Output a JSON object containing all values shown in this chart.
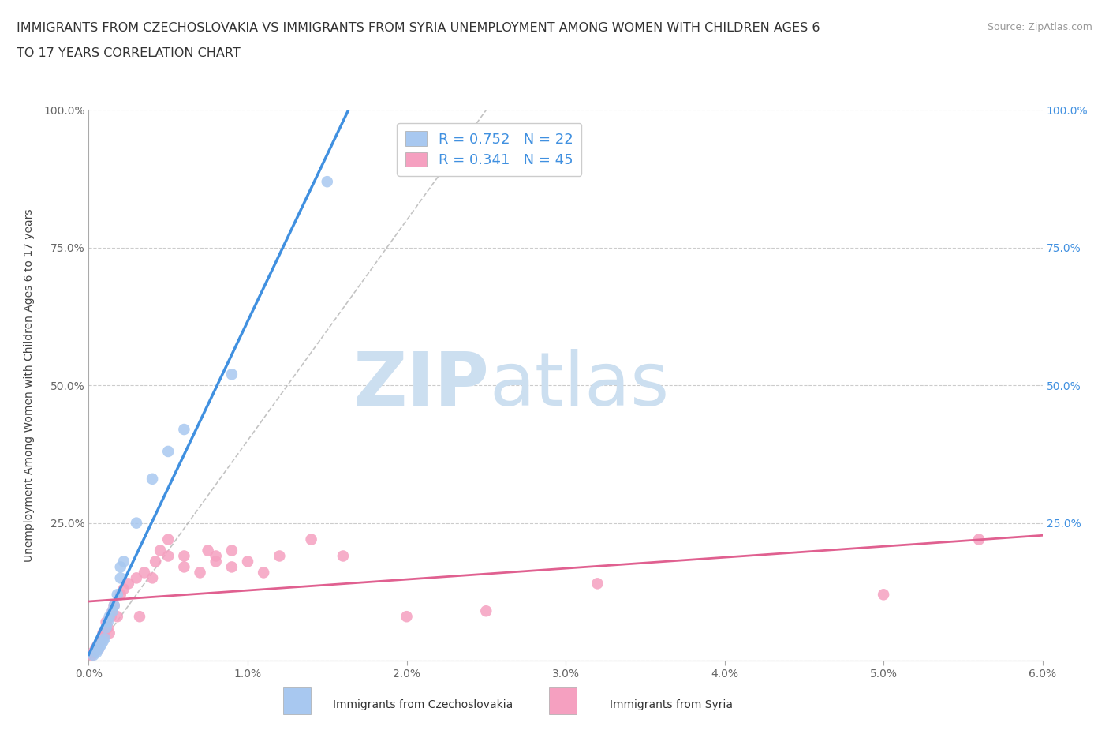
{
  "title_line1": "IMMIGRANTS FROM CZECHOSLOVAKIA VS IMMIGRANTS FROM SYRIA UNEMPLOYMENT AMONG WOMEN WITH CHILDREN AGES 6",
  "title_line2": "TO 17 YEARS CORRELATION CHART",
  "source": "Source: ZipAtlas.com",
  "legend_label_czech": "Immigrants from Czechoslovakia",
  "legend_label_syria": "Immigrants from Syria",
  "ylabel": "Unemployment Among Women with Children Ages 6 to 17 years",
  "xlim": [
    0.0,
    0.06
  ],
  "ylim": [
    0.0,
    1.0
  ],
  "xticks": [
    0.0,
    0.01,
    0.02,
    0.03,
    0.04,
    0.05,
    0.06
  ],
  "xtick_labels": [
    "0.0%",
    "1.0%",
    "2.0%",
    "3.0%",
    "4.0%",
    "5.0%",
    "6.0%"
  ],
  "yticks": [
    0.0,
    0.25,
    0.5,
    0.75,
    1.0
  ],
  "ytick_labels_left": [
    "",
    "25.0%",
    "50.0%",
    "75.0%",
    "100.0%"
  ],
  "ytick_labels_right": [
    "",
    "25.0%",
    "50.0%",
    "75.0%",
    "100.0%"
  ],
  "R_czech": 0.752,
  "N_czech": 22,
  "R_syria": 0.341,
  "N_syria": 45,
  "color_czech": "#a8c8f0",
  "color_syria": "#f5a0c0",
  "color_trend_czech": "#4090e0",
  "color_trend_syria": "#e06090",
  "color_right_axis": "#4090e0",
  "watermark_ZIP": "ZIP",
  "watermark_atlas": "atlas",
  "watermark_color": "#ccdff0",
  "czech_points_x": [
    0.0003,
    0.0005,
    0.0006,
    0.0007,
    0.0008,
    0.0009,
    0.001,
    0.0011,
    0.0012,
    0.0013,
    0.0015,
    0.0016,
    0.0018,
    0.002,
    0.002,
    0.0022,
    0.003,
    0.004,
    0.005,
    0.006,
    0.009,
    0.015
  ],
  "czech_points_y": [
    0.01,
    0.015,
    0.02,
    0.025,
    0.03,
    0.035,
    0.04,
    0.06,
    0.07,
    0.08,
    0.09,
    0.1,
    0.12,
    0.15,
    0.17,
    0.18,
    0.25,
    0.33,
    0.38,
    0.42,
    0.52,
    0.87
  ],
  "syria_points_x": [
    0.0002,
    0.0003,
    0.0004,
    0.0005,
    0.0006,
    0.0007,
    0.0008,
    0.0009,
    0.001,
    0.0011,
    0.0012,
    0.0013,
    0.0014,
    0.0015,
    0.0016,
    0.0018,
    0.002,
    0.0022,
    0.0025,
    0.003,
    0.0032,
    0.0035,
    0.004,
    0.0042,
    0.0045,
    0.005,
    0.005,
    0.006,
    0.006,
    0.007,
    0.0075,
    0.008,
    0.008,
    0.009,
    0.009,
    0.01,
    0.011,
    0.012,
    0.014,
    0.016,
    0.02,
    0.025,
    0.032,
    0.05,
    0.056
  ],
  "syria_points_y": [
    0.01,
    0.015,
    0.02,
    0.025,
    0.02,
    0.035,
    0.04,
    0.05,
    0.045,
    0.07,
    0.06,
    0.05,
    0.08,
    0.09,
    0.1,
    0.08,
    0.12,
    0.13,
    0.14,
    0.15,
    0.08,
    0.16,
    0.15,
    0.18,
    0.2,
    0.19,
    0.22,
    0.17,
    0.19,
    0.16,
    0.2,
    0.18,
    0.19,
    0.17,
    0.2,
    0.18,
    0.16,
    0.19,
    0.22,
    0.19,
    0.08,
    0.09,
    0.14,
    0.12,
    0.22
  ],
  "title_fontsize": 11.5,
  "axis_label_fontsize": 10,
  "tick_fontsize": 10,
  "legend_fontsize": 13,
  "source_fontsize": 9
}
